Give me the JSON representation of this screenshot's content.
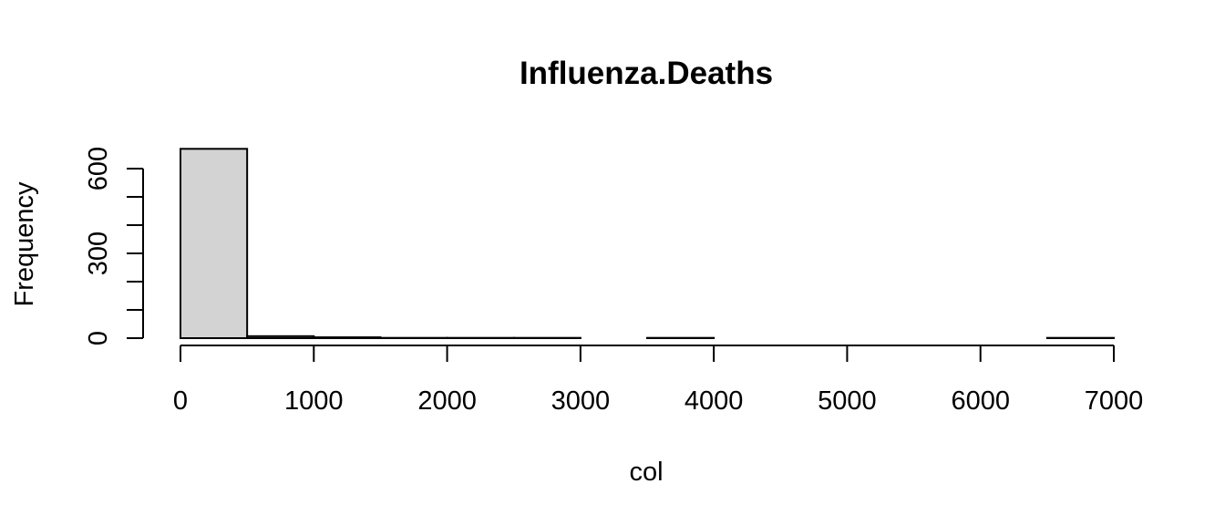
{
  "chart_data": {
    "type": "bar",
    "title": "Influenza.Deaths",
    "xlabel": "col",
    "ylabel": "Frequency",
    "bar_color": "#d3d3d3",
    "x_ticks": [
      0,
      1000,
      2000,
      3000,
      4000,
      5000,
      6000,
      7000
    ],
    "y_ticks": [
      0,
      300,
      600
    ],
    "y_minor_ticks": [
      0,
      100,
      200,
      300,
      400,
      500,
      600
    ],
    "xlim": [
      0,
      7000
    ],
    "ylim": [
      0,
      680
    ],
    "bins": [
      {
        "start": 0,
        "end": 500,
        "count": 670
      },
      {
        "start": 500,
        "end": 1000,
        "count": 7
      },
      {
        "start": 1000,
        "end": 1500,
        "count": 3
      },
      {
        "start": 1500,
        "end": 2000,
        "count": 1
      },
      {
        "start": 2000,
        "end": 2500,
        "count": 1
      },
      {
        "start": 2500,
        "end": 3000,
        "count": 1
      },
      {
        "start": 3000,
        "end": 3500,
        "count": 0
      },
      {
        "start": 3500,
        "end": 4000,
        "count": 1
      },
      {
        "start": 4000,
        "end": 4500,
        "count": 0
      },
      {
        "start": 4500,
        "end": 5000,
        "count": 0
      },
      {
        "start": 5000,
        "end": 5500,
        "count": 0
      },
      {
        "start": 5500,
        "end": 6000,
        "count": 0
      },
      {
        "start": 6000,
        "end": 6500,
        "count": 0
      },
      {
        "start": 6500,
        "end": 7000,
        "count": 1
      }
    ]
  }
}
